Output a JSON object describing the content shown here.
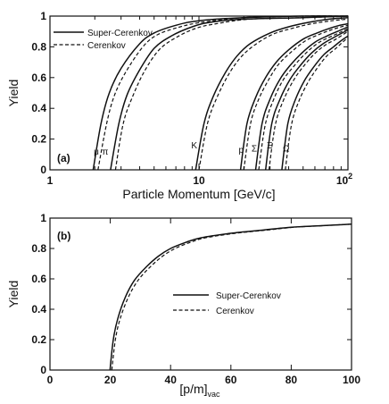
{
  "chart_data": [
    {
      "panel_label": "(a)",
      "type": "line",
      "xlabel": "Particle Momentum [GeV/c]",
      "ylabel": "Yield",
      "xscale": "log",
      "xlim": [
        1,
        100
      ],
      "ylim": [
        0,
        1
      ],
      "x_ticks": [
        "1",
        "10",
        "10"
      ],
      "x_tick_sup": "2",
      "y_ticks": [
        "0",
        "0.2",
        "0.4",
        "0.6",
        "0.8",
        "1"
      ],
      "legend": {
        "placement": "top-left",
        "entries": [
          {
            "label": "Super-Cerenkov",
            "style": "solid"
          },
          {
            "label": "Cerenkov",
            "style": "dashed"
          }
        ]
      },
      "series": [
        {
          "particle": "μ",
          "style": "solid",
          "x": [
            1.95,
            2.2,
            2.5,
            3,
            4,
            5,
            7,
            10,
            20,
            50,
            100
          ],
          "y": [
            0,
            0.3,
            0.5,
            0.66,
            0.82,
            0.89,
            0.94,
            0.97,
            0.99,
            1.0,
            1.0
          ]
        },
        {
          "particle": "μ",
          "style": "dashed",
          "x": [
            2.1,
            2.4,
            2.7,
            3.2,
            4.2,
            5.3,
            7.5,
            10.5,
            20,
            50,
            100
          ],
          "y": [
            0,
            0.3,
            0.48,
            0.63,
            0.8,
            0.88,
            0.93,
            0.96,
            0.99,
            1.0,
            1.0
          ]
        },
        {
          "particle": "π",
          "style": "solid",
          "x": [
            2.55,
            2.9,
            3.3,
            4,
            5,
            6.5,
            9,
            12,
            20,
            50,
            100
          ],
          "y": [
            0,
            0.3,
            0.49,
            0.65,
            0.79,
            0.87,
            0.93,
            0.96,
            0.98,
            0.99,
            1.0
          ]
        },
        {
          "particle": "π",
          "style": "dashed",
          "x": [
            2.75,
            3.1,
            3.6,
            4.3,
            5.4,
            7,
            9.5,
            13,
            22,
            50,
            100
          ],
          "y": [
            0,
            0.3,
            0.48,
            0.64,
            0.78,
            0.86,
            0.92,
            0.95,
            0.98,
            0.99,
            1.0
          ]
        },
        {
          "particle": "K",
          "style": "solid",
          "x": [
            9.5,
            10.8,
            12.5,
            15,
            18,
            22,
            30,
            40,
            55,
            75,
            100
          ],
          "y": [
            0,
            0.3,
            0.48,
            0.63,
            0.74,
            0.82,
            0.89,
            0.93,
            0.96,
            0.98,
            0.99
          ]
        },
        {
          "particle": "K",
          "style": "dashed",
          "x": [
            10,
            11.4,
            13.2,
            15.8,
            19,
            23.5,
            31,
            42,
            57,
            78,
            100
          ],
          "y": [
            0,
            0.3,
            0.47,
            0.62,
            0.73,
            0.81,
            0.88,
            0.92,
            0.95,
            0.97,
            0.98
          ]
        },
        {
          "particle": "p",
          "style": "solid",
          "x": [
            19,
            21,
            24,
            28,
            33,
            40,
            50,
            62,
            75,
            88,
            100
          ],
          "y": [
            0,
            0.3,
            0.47,
            0.6,
            0.7,
            0.78,
            0.85,
            0.89,
            0.92,
            0.94,
            0.95
          ]
        },
        {
          "particle": "p",
          "style": "dashed",
          "x": [
            20,
            22.2,
            25.2,
            29.5,
            34.5,
            42,
            52,
            64,
            77,
            90,
            100
          ],
          "y": [
            0,
            0.3,
            0.46,
            0.59,
            0.69,
            0.77,
            0.84,
            0.88,
            0.91,
            0.93,
            0.94
          ]
        },
        {
          "particle": "Σ",
          "style": "solid",
          "x": [
            24,
            26.5,
            30,
            35,
            41,
            49,
            60,
            72,
            85,
            100
          ],
          "y": [
            0,
            0.3,
            0.46,
            0.59,
            0.68,
            0.76,
            0.83,
            0.87,
            0.9,
            0.93
          ]
        },
        {
          "particle": "Σ",
          "style": "dashed",
          "x": [
            25.2,
            27.8,
            31.5,
            36.5,
            43,
            51,
            62,
            74,
            87,
            100
          ],
          "y": [
            0,
            0.29,
            0.45,
            0.58,
            0.67,
            0.75,
            0.82,
            0.86,
            0.89,
            0.92
          ]
        },
        {
          "particle": "Ξ",
          "style": "solid",
          "x": [
            28,
            30.8,
            35,
            41,
            48,
            57,
            68,
            80,
            100
          ],
          "y": [
            0,
            0.3,
            0.46,
            0.59,
            0.68,
            0.76,
            0.82,
            0.86,
            0.91
          ]
        },
        {
          "particle": "Ξ",
          "style": "dashed",
          "x": [
            29.5,
            32.5,
            36.8,
            43,
            50,
            59,
            70,
            83,
            100
          ],
          "y": [
            0,
            0.29,
            0.45,
            0.58,
            0.67,
            0.75,
            0.81,
            0.85,
            0.9
          ]
        },
        {
          "particle": "Ω",
          "style": "solid",
          "x": [
            36,
            39.5,
            44.5,
            51,
            59,
            69,
            80,
            90,
            100
          ],
          "y": [
            0,
            0.3,
            0.46,
            0.58,
            0.67,
            0.75,
            0.8,
            0.84,
            0.87
          ]
        },
        {
          "particle": "Ω",
          "style": "dashed",
          "x": [
            38,
            41.7,
            47,
            54,
            62,
            72,
            83,
            92,
            100
          ],
          "y": [
            0,
            0.29,
            0.45,
            0.57,
            0.66,
            0.74,
            0.79,
            0.83,
            0.86
          ]
        }
      ],
      "annotations": [
        {
          "text": "μ",
          "x": 2.05,
          "y": 0.1
        },
        {
          "text": "π",
          "x": 2.35,
          "y": 0.1
        },
        {
          "text": "K",
          "x": 9.3,
          "y": 0.14
        },
        {
          "text": "p",
          "x": 19.2,
          "y": 0.11
        },
        {
          "text": "Σ",
          "x": 23.5,
          "y": 0.12
        },
        {
          "text": "Ξ",
          "x": 29.8,
          "y": 0.14
        },
        {
          "text": "Ω",
          "x": 38.5,
          "y": 0.12
        }
      ]
    },
    {
      "panel_label": "(b)",
      "type": "line",
      "xlabel": "[p/m]",
      "xlabel_sub": "vac",
      "ylabel": "Yield",
      "xlim": [
        0,
        100
      ],
      "ylim": [
        0,
        1
      ],
      "x_ticks": [
        "0",
        "20",
        "40",
        "60",
        "80",
        "100"
      ],
      "y_ticks": [
        "0",
        "0.2",
        "0.4",
        "0.6",
        "0.8",
        "1"
      ],
      "legend": {
        "placement": "center-right",
        "entries": [
          {
            "label": "Super-Cerenkov",
            "style": "solid"
          },
          {
            "label": "Cerenkov",
            "style": "dashed"
          }
        ]
      },
      "series": [
        {
          "name": "Super-Cerenkov",
          "style": "solid",
          "x": [
            19.9,
            21,
            22.5,
            25,
            28,
            32,
            36,
            40,
            45,
            50,
            60,
            70,
            80,
            90,
            100
          ],
          "y": [
            0,
            0.2,
            0.34,
            0.48,
            0.59,
            0.68,
            0.75,
            0.8,
            0.84,
            0.87,
            0.9,
            0.92,
            0.94,
            0.95,
            0.96
          ]
        },
        {
          "name": "Cerenkov",
          "style": "dashed",
          "x": [
            20.5,
            21.7,
            23.3,
            26,
            29.2,
            33.3,
            37.4,
            41.5,
            46.5,
            51.5,
            61.5,
            71.5,
            81,
            90.5,
            100
          ],
          "y": [
            0,
            0.2,
            0.34,
            0.48,
            0.59,
            0.68,
            0.75,
            0.8,
            0.84,
            0.87,
            0.9,
            0.92,
            0.94,
            0.95,
            0.96
          ]
        }
      ]
    }
  ]
}
